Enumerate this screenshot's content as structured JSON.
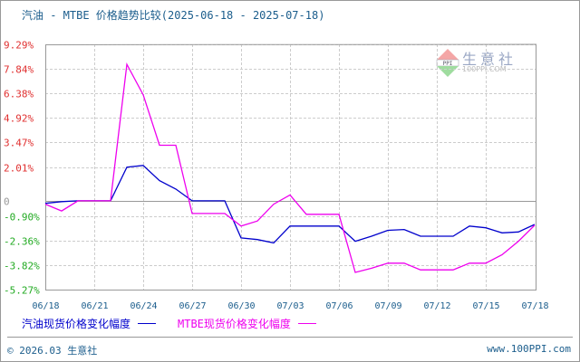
{
  "title": "汽油 - MTBE 价格趋势比较(2025-06-18 - 2025-07-18)",
  "watermark": {
    "brand": "生意社",
    "url": "100PPI.COM",
    "logo_text": "PPI"
  },
  "footer": {
    "copyright": "© 2026.03 生意社",
    "site": "www.100PPI.com"
  },
  "legend": [
    {
      "label": "汽油现货价格变化幅度",
      "color": "#0000cc"
    },
    {
      "label": "MTBE现货价格变化幅度",
      "color": "#ee00ee"
    }
  ],
  "colors": {
    "positive_tick": "#e03030",
    "negative_tick": "#22aa22",
    "zero_tick": "#999999",
    "axis": "#999999",
    "grid": "#cccccc",
    "xtick": "#1b5d8c"
  },
  "chart_data": {
    "type": "line",
    "title": "汽油 - MTBE 价格趋势比较(2025-06-18 - 2025-07-18)",
    "xlabel": "",
    "ylabel": "",
    "ylim": [
      -5.27,
      9.29
    ],
    "y_ticks": [
      "9.29%",
      "7.84%",
      "6.38%",
      "4.92%",
      "3.47%",
      "2.01%",
      "0",
      "-0.90%",
      "-2.36%",
      "-3.82%",
      "-5.27%"
    ],
    "y_tick_values": [
      9.29,
      7.84,
      6.38,
      4.92,
      3.47,
      2.01,
      0,
      -0.9,
      -2.36,
      -3.82,
      -5.27
    ],
    "x_ticks": [
      "06/18",
      "06/21",
      "06/24",
      "06/27",
      "06/30",
      "07/03",
      "07/06",
      "07/09",
      "07/12",
      "07/15",
      "07/18"
    ],
    "grid": true,
    "legend_position": "bottom",
    "x": [
      "06/18",
      "06/19",
      "06/20",
      "06/21",
      "06/22",
      "06/23",
      "06/24",
      "06/25",
      "06/26",
      "06/27",
      "06/28",
      "06/29",
      "06/30",
      "07/01",
      "07/02",
      "07/03",
      "07/04",
      "07/05",
      "07/06",
      "07/07",
      "07/08",
      "07/09",
      "07/10",
      "07/11",
      "07/12",
      "07/13",
      "07/14",
      "07/15",
      "07/16",
      "07/17",
      "07/18"
    ],
    "series": [
      {
        "name": "汽油现货价格变化幅度",
        "color": "#0000cc",
        "values": [
          -0.15,
          -0.05,
          0.0,
          0.0,
          0.0,
          2.0,
          2.1,
          1.2,
          0.7,
          0.0,
          0.0,
          0.0,
          -2.2,
          -2.3,
          -2.5,
          -1.5,
          -1.5,
          -1.5,
          -1.5,
          -2.4,
          -2.1,
          -1.75,
          -1.7,
          -2.1,
          -2.1,
          -2.1,
          -1.5,
          -1.6,
          -1.9,
          -1.85,
          -1.4
        ]
      },
      {
        "name": "MTBE现货价格变化幅度",
        "color": "#ee00ee",
        "values": [
          -0.2,
          -0.6,
          0.0,
          0.0,
          0.0,
          8.1,
          6.3,
          3.3,
          3.3,
          -0.75,
          -0.75,
          -0.75,
          -1.5,
          -1.2,
          -0.2,
          0.35,
          -0.8,
          -0.8,
          -0.8,
          -4.25,
          -4.0,
          -3.7,
          -3.7,
          -4.1,
          -4.1,
          -4.1,
          -3.7,
          -3.7,
          -3.2,
          -2.4,
          -1.45
        ]
      }
    ]
  }
}
